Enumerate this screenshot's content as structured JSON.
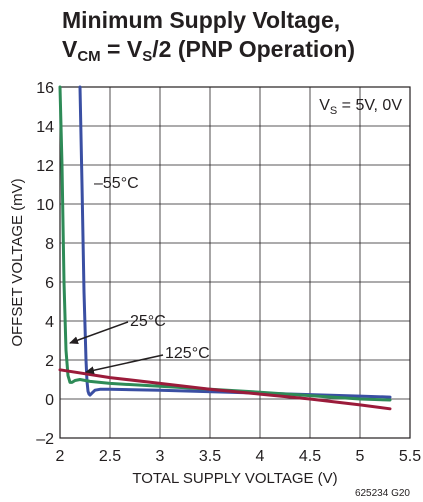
{
  "title": {
    "line1": "Minimum Supply Voltage,",
    "line2_a": "V",
    "line2_sub1": "CM",
    "line2_b": " = V",
    "line2_sub2": "S",
    "line2_c": "/2  (PNP Operation)"
  },
  "figure_code": "625234 G20",
  "legend_box": {
    "prefix": "V",
    "sub": "S",
    "rest": " = 5V, 0V"
  },
  "colors": {
    "neg55": "#3a4fa3",
    "t25": "#2e8b57",
    "t125": "#9b1b3a",
    "grid": "#231f20"
  },
  "chart_data": {
    "type": "line",
    "title": "Minimum Supply Voltage, VCM = VS/2 (PNP Operation)",
    "xlabel": "TOTAL SUPPLY VOLTAGE (V)",
    "ylabel": "OFFSET VOLTAGE (mV)",
    "xlim": [
      2,
      5.5
    ],
    "ylim": [
      -2,
      16
    ],
    "xticks": [
      2,
      2.5,
      3,
      3.5,
      4,
      4.5,
      5,
      5.5
    ],
    "xtick_labels": [
      "2",
      "2.5",
      "3",
      "3.5",
      "4",
      "4.5",
      "5",
      "5.5"
    ],
    "yticks": [
      -2,
      0,
      2,
      4,
      6,
      8,
      10,
      12,
      14,
      16
    ],
    "ytick_labels": [
      "–2",
      "0",
      "2",
      "4",
      "6",
      "8",
      "10",
      "12",
      "14",
      "16"
    ],
    "grid": true,
    "series": [
      {
        "name": "–55°C",
        "color": "#3a4fa3",
        "x": [
          2.2,
          2.22,
          2.24,
          2.26,
          2.27,
          2.28,
          2.29,
          2.3,
          2.32,
          2.35,
          2.4,
          2.5,
          3.0,
          4.0,
          5.0,
          5.3
        ],
        "y": [
          16,
          11,
          5.5,
          2.0,
          0.9,
          0.4,
          0.25,
          0.2,
          0.3,
          0.45,
          0.5,
          0.5,
          0.45,
          0.3,
          0.15,
          0.1
        ]
      },
      {
        "name": "25°C",
        "color": "#2e8b57",
        "x": [
          2.0,
          2.02,
          2.04,
          2.06,
          2.08,
          2.1,
          2.12,
          2.15,
          2.2,
          2.3,
          2.5,
          3.0,
          4.0,
          5.0,
          5.3
        ],
        "y": [
          16,
          12,
          6,
          2.5,
          1.2,
          0.85,
          0.85,
          0.95,
          1.0,
          0.9,
          0.8,
          0.65,
          0.35,
          0.0,
          -0.05
        ]
      },
      {
        "name": "125°C",
        "color": "#9b1b3a",
        "x": [
          2.0,
          2.5,
          3.0,
          3.5,
          4.0,
          4.5,
          5.0,
          5.3
        ],
        "y": [
          1.5,
          1.1,
          0.8,
          0.5,
          0.25,
          0.0,
          -0.3,
          -0.5
        ]
      }
    ],
    "annotations": [
      "–55°C",
      "25°C",
      "125°C"
    ]
  }
}
